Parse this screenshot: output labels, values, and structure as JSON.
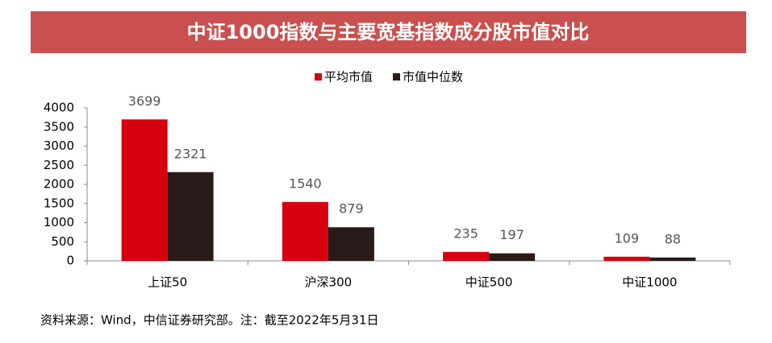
{
  "chart_data": {
    "type": "bar",
    "title": "中证1000指数与主要宽基指数成分股市值对比",
    "categories": [
      "上证50",
      "沪深300",
      "中证500",
      "中证1000"
    ],
    "series": [
      {
        "name": "平均市值",
        "color": "#d7000f",
        "values": [
          3699,
          1540,
          235,
          109
        ]
      },
      {
        "name": "市值中位数",
        "color": "#2a1a1a",
        "values": [
          2321,
          879,
          197,
          88
        ]
      }
    ],
    "ylim": [
      0,
      4000
    ],
    "yticks": [
      0,
      500,
      1000,
      1500,
      2000,
      2500,
      3000,
      3500,
      4000
    ],
    "legend": "top",
    "source": "资料来源：Wind，中信证券研究部。注：截至2022年5月31日"
  }
}
